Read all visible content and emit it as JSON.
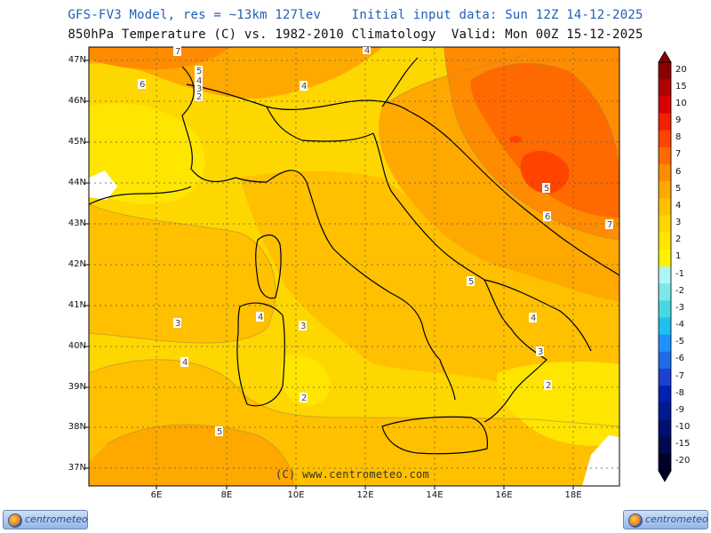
{
  "header": {
    "line1": "GFS-FV3 Model, res = ~13km 127lev    Initial input data: Sun 12Z 14-12-2025",
    "line2": "850hPa Temperature (C) vs. 1982-2010 Climatology  Valid: Mon 00Z 15-12-2025"
  },
  "axes": {
    "lat_labels": [
      "47N",
      "46N",
      "45N",
      "44N",
      "43N",
      "42N",
      "41N",
      "40N",
      "39N",
      "38N",
      "37N"
    ],
    "lon_labels": [
      "6E",
      "8E",
      "10E",
      "12E",
      "14E",
      "16E",
      "18E"
    ]
  },
  "credit": "(C) www.centrometeo.com",
  "logos": {
    "left_text": "centrometeo",
    "right_text": "centrometeo"
  },
  "colorbar": {
    "labels": [
      "20",
      "15",
      "10",
      "9",
      "8",
      "7",
      "6",
      "5",
      "4",
      "3",
      "2",
      "1",
      "-1",
      "-2",
      "-3",
      "-4",
      "-5",
      "-6",
      "-7",
      "-8",
      "-9",
      "-10",
      "-15",
      "-20"
    ],
    "colors": [
      "#8b0000",
      "#b00000",
      "#d80000",
      "#f02000",
      "#ff4400",
      "#ff6a00",
      "#ff8c00",
      "#ffa800",
      "#ffc000",
      "#ffd700",
      "#ffe600",
      "#fff200",
      "#aef5f5",
      "#7de8e8",
      "#48d8e0",
      "#1ec0f0",
      "#1e90ff",
      "#1e6be8",
      "#1e40d0",
      "#0020b0",
      "#001a90",
      "#001070",
      "#000850",
      "#00002a"
    ]
  },
  "contour_labels": [
    "7",
    "6",
    "5",
    "4",
    "3",
    "2",
    "4",
    "6",
    "5",
    "6",
    "7",
    "5",
    "4",
    "3",
    "3",
    "4",
    "3",
    "2",
    "4",
    "5",
    "3",
    "2"
  ],
  "colors": {
    "anomaly_1_2": "#ffe600",
    "anomaly_2_3": "#ffd700",
    "anomaly_3_4": "#ffc000",
    "anomaly_4_5": "#ffa800",
    "anomaly_5_6": "#ff8c00",
    "anomaly_6_7": "#ff6a00",
    "anomaly_7_8": "#ff4400",
    "anomaly_8_9": "#f02000",
    "snow_white": "#ffffff"
  }
}
